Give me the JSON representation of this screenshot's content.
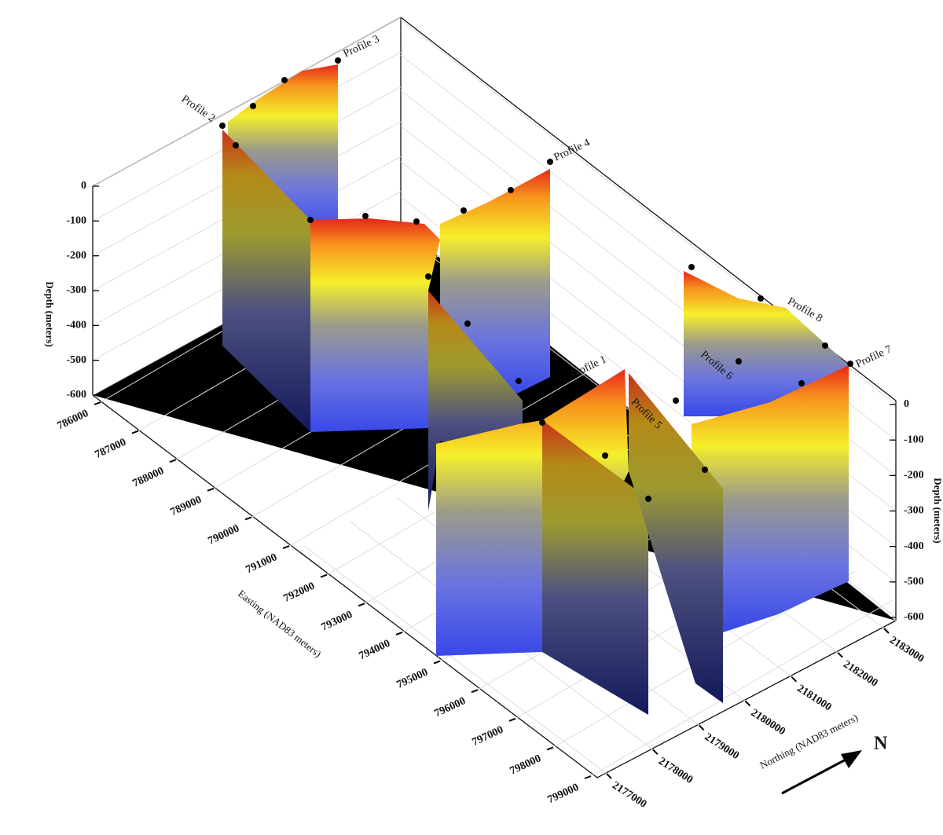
{
  "depth_axis_left": {
    "label": "Depth (meters)",
    "ticks": [
      0,
      -100,
      -200,
      -300,
      -400,
      -500,
      -600
    ]
  },
  "depth_axis_right": {
    "label": "Depth (meters)",
    "ticks": [
      0,
      -100,
      -200,
      -300,
      -400,
      -500,
      -600
    ]
  },
  "easting_axis": {
    "label": "Easting (NAD83 meters)",
    "ticks": [
      786000,
      787000,
      788000,
      789000,
      790000,
      791000,
      792000,
      793000,
      794000,
      795000,
      796000,
      797000,
      798000,
      799000
    ]
  },
  "northing_axis": {
    "label": "Northing (NAD83 meters)",
    "ticks": [
      2177000,
      2178000,
      2179000,
      2180000,
      2181000,
      2182000,
      2183000
    ]
  },
  "profiles": [
    {
      "label": "Profile 1"
    },
    {
      "label": "Profile 2"
    },
    {
      "label": "Profile 3"
    },
    {
      "label": "Profile 4"
    },
    {
      "label": "Profile 5"
    },
    {
      "label": "Profile 6"
    },
    {
      "label": "Profile 7"
    },
    {
      "label": "Profile 8"
    }
  ],
  "north_arrow": {
    "label": "N"
  }
}
